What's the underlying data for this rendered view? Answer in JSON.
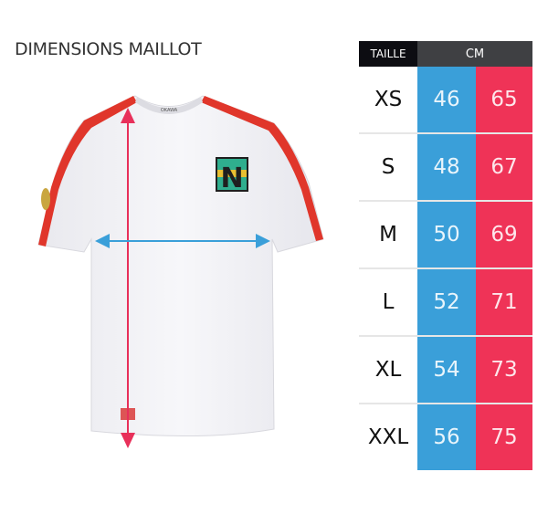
{
  "title": "DIMENSIONS MAILLOT",
  "shirt": {
    "crest_letter": "N",
    "collar_brand": "OKAWA",
    "arrow_colors": {
      "width": "#3a9fd9",
      "length": "#e8305a"
    }
  },
  "table": {
    "header": {
      "size": "TAILLE",
      "unit": "CM"
    },
    "colors": {
      "header_size": "#0d0d12",
      "header_unit": "#3f4043",
      "width": "#3a9fd9",
      "length": "#ef3357"
    },
    "rows": [
      {
        "size": "XS",
        "width": "46",
        "length": "65"
      },
      {
        "size": "S",
        "width": "48",
        "length": "67"
      },
      {
        "size": "M",
        "width": "50",
        "length": "69"
      },
      {
        "size": "L",
        "width": "52",
        "length": "71"
      },
      {
        "size": "XL",
        "width": "54",
        "length": "73"
      },
      {
        "size": "XXL",
        "width": "56",
        "length": "75"
      }
    ]
  }
}
